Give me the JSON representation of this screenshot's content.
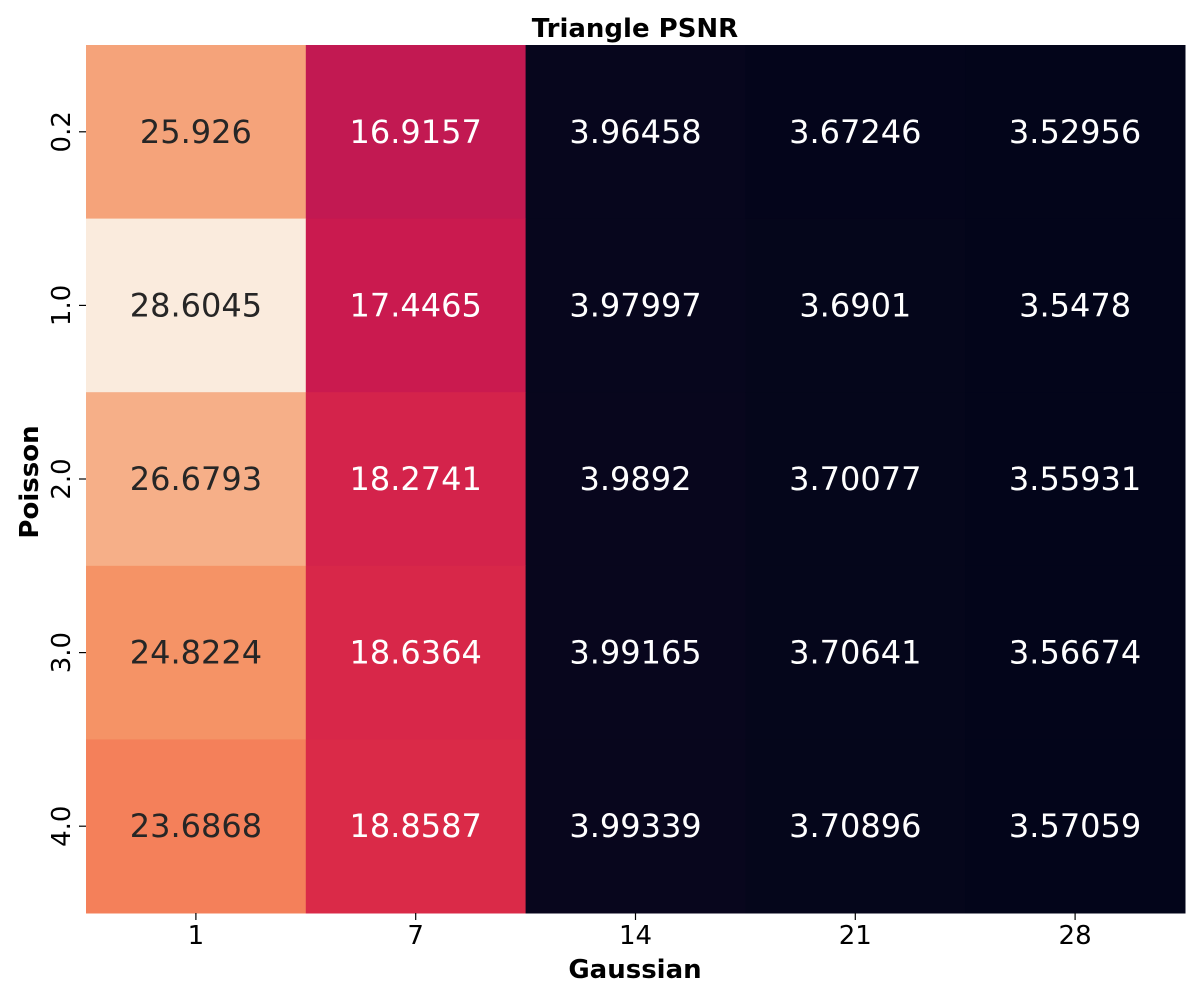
{
  "chart_data": {
    "type": "heatmap",
    "title": "Triangle PSNR",
    "xlabel": "Gaussian",
    "ylabel": "Poisson",
    "x_categories": [
      "1",
      "7",
      "14",
      "21",
      "28"
    ],
    "y_categories": [
      "0.2",
      "1.0",
      "2.0",
      "3.0",
      "4.0"
    ],
    "values": [
      [
        "25.926",
        "16.9157",
        "3.96458",
        "3.67246",
        "3.52956"
      ],
      [
        "28.6045",
        "17.4465",
        "3.97997",
        "3.6901",
        "3.5478"
      ],
      [
        "26.6793",
        "18.2741",
        "3.9892",
        "3.70077",
        "3.55931"
      ],
      [
        "24.8224",
        "18.6364",
        "3.99165",
        "3.70641",
        "3.56674"
      ],
      [
        "23.6868",
        "18.8587",
        "3.99339",
        "3.70896",
        "3.57059"
      ]
    ],
    "colormap": "rocket",
    "colorbar": false,
    "annotated": true
  }
}
